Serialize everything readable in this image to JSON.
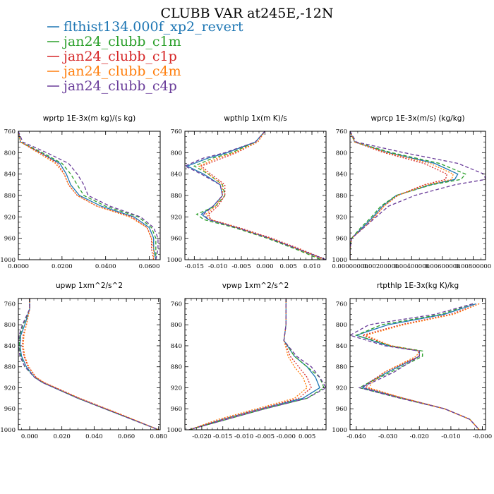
{
  "figure": {
    "title": "CLUBB VAR at245E,-12N"
  },
  "colors": {
    "series": [
      "#1f77b4",
      "#2ca02c",
      "#d62728",
      "#ff7f0e",
      "#6a3d9a"
    ],
    "dashes": [
      "none",
      "5,3",
      "2,2",
      "2,2",
      "5,3"
    ]
  },
  "chart_data": [
    {
      "type": "line",
      "title": "wprtp  1E-3x(m kg)/(s kg)",
      "y_reversed": true,
      "ylim": [
        760,
        1000
      ],
      "xlim": [
        0.0,
        0.065
      ],
      "yticks": [
        "760",
        "800",
        "840",
        "880",
        "920",
        "960",
        "1000"
      ],
      "xticks": [
        "0.0000",
        "0.0200",
        "0.0400",
        "0.0600"
      ],
      "y": [
        760,
        780,
        800,
        820,
        840,
        860,
        880,
        900,
        920,
        940,
        960,
        980,
        1000
      ],
      "series": [
        {
          "name": "flthist134.000f_xp2_revert",
          "values": [
            0.0,
            0.001,
            0.01,
            0.019,
            0.022,
            0.024,
            0.028,
            0.038,
            0.053,
            0.06,
            0.062,
            0.062,
            0.063
          ]
        },
        {
          "name": "jan24_clubb_c1m",
          "values": [
            0.0,
            0.001,
            0.011,
            0.02,
            0.024,
            0.027,
            0.03,
            0.04,
            0.055,
            0.061,
            0.063,
            0.063,
            0.063
          ]
        },
        {
          "name": "jan24_clubb_c1p",
          "values": [
            0.0,
            0.001,
            0.01,
            0.018,
            0.021,
            0.023,
            0.027,
            0.036,
            0.052,
            0.059,
            0.061,
            0.061,
            0.062
          ]
        },
        {
          "name": "jan24_clubb_c4m",
          "values": [
            0.0,
            0.001,
            0.009,
            0.017,
            0.021,
            0.023,
            0.027,
            0.036,
            0.051,
            0.059,
            0.061,
            0.062,
            0.062
          ]
        },
        {
          "name": "jan24_clubb_c4p",
          "values": [
            0.0,
            0.002,
            0.013,
            0.023,
            0.027,
            0.03,
            0.032,
            0.042,
            0.056,
            0.062,
            0.064,
            0.064,
            0.063
          ]
        }
      ]
    },
    {
      "type": "line",
      "title": "wpthlp  1x(m K)/s",
      "y_reversed": true,
      "ylim": [
        760,
        1000
      ],
      "xlim": [
        -0.017,
        0.013
      ],
      "yticks": [
        "760",
        "800",
        "840",
        "880",
        "920",
        "960",
        "1000"
      ],
      "xticks": [
        "-0.015",
        "-0.010",
        "-0.005",
        "0.000",
        "0.005",
        "0.010"
      ],
      "y": [
        760,
        780,
        800,
        810,
        825,
        840,
        860,
        880,
        900,
        915,
        925,
        940,
        960,
        980,
        1000
      ],
      "series": [
        {
          "name": "flthist134.000f_xp2_revert",
          "values": [
            0.0,
            -0.002,
            -0.008,
            -0.012,
            -0.0165,
            -0.013,
            -0.0095,
            -0.009,
            -0.011,
            -0.0135,
            -0.012,
            -0.006,
            0.001,
            0.007,
            0.013
          ]
        },
        {
          "name": "jan24_clubb_c1m",
          "values": [
            0.0,
            -0.002,
            -0.007,
            -0.011,
            -0.015,
            -0.012,
            -0.009,
            -0.0085,
            -0.0105,
            -0.0145,
            -0.013,
            -0.0065,
            0.0005,
            0.0065,
            0.012
          ]
        },
        {
          "name": "jan24_clubb_c1p",
          "values": [
            0.0,
            -0.0015,
            -0.006,
            -0.009,
            -0.0135,
            -0.0115,
            -0.0085,
            -0.0085,
            -0.01,
            -0.012,
            -0.0115,
            -0.0055,
            0.0015,
            0.0075,
            0.013
          ]
        },
        {
          "name": "jan24_clubb_c4m",
          "values": [
            0.0,
            -0.0015,
            -0.0065,
            -0.01,
            -0.014,
            -0.012,
            -0.009,
            -0.009,
            -0.0105,
            -0.0125,
            -0.0115,
            -0.006,
            0.001,
            0.007,
            0.0125
          ]
        },
        {
          "name": "jan24_clubb_c4p",
          "values": [
            0.0,
            -0.002,
            -0.0085,
            -0.013,
            -0.017,
            -0.0135,
            -0.0095,
            -0.009,
            -0.011,
            -0.013,
            -0.012,
            -0.006,
            0.001,
            0.007,
            0.013
          ]
        }
      ]
    },
    {
      "type": "line",
      "title": "wprcp  1E-3x(m/s) (kg/kg)",
      "y_reversed": true,
      "ylim": [
        760,
        1000
      ],
      "xlim": [
        0.0,
        0.0088
      ],
      "yticks": [
        "760",
        "800",
        "840",
        "880",
        "920",
        "960",
        "1000"
      ],
      "xticks": [
        "0.00000000",
        "0.00200000",
        "0.00400000",
        "0.00600000",
        "0.00800000"
      ],
      "y": [
        760,
        780,
        800,
        820,
        840,
        850,
        860,
        880,
        900,
        920,
        940,
        960,
        980,
        1000
      ],
      "series": [
        {
          "name": "flthist134.000f_xp2_revert",
          "values": [
            0.0,
            0.0003,
            0.0025,
            0.0055,
            0.007,
            0.0068,
            0.0052,
            0.003,
            0.0021,
            0.0015,
            0.0008,
            0.0001,
            0.0,
            0.0
          ]
        },
        {
          "name": "jan24_clubb_c1m",
          "values": [
            0.0,
            0.0003,
            0.0027,
            0.0058,
            0.0075,
            0.0072,
            0.0053,
            0.003,
            0.002,
            0.0014,
            0.0007,
            0.0001,
            0.0,
            0.0
          ]
        },
        {
          "name": "jan24_clubb_c1p",
          "values": [
            0.0,
            0.0003,
            0.0022,
            0.0048,
            0.0063,
            0.0062,
            0.0048,
            0.0031,
            0.0022,
            0.0016,
            0.0009,
            0.0001,
            0.0,
            0.0
          ]
        },
        {
          "name": "jan24_clubb_c4m",
          "values": [
            0.0,
            0.0003,
            0.0024,
            0.0052,
            0.0067,
            0.0066,
            0.005,
            0.0031,
            0.0022,
            0.0016,
            0.0009,
            0.0001,
            0.0,
            0.0
          ]
        },
        {
          "name": "jan24_clubb_c4p",
          "values": [
            0.0,
            0.0004,
            0.0035,
            0.007,
            0.0087,
            0.0088,
            0.0068,
            0.0042,
            0.0025,
            0.0017,
            0.0009,
            0.0001,
            0.0,
            0.0
          ]
        }
      ]
    },
    {
      "type": "line",
      "title": "upwp  1xm^2/s^2",
      "y_reversed": true,
      "ylim": [
        750,
        1000
      ],
      "xlim": [
        -0.007,
        0.081
      ],
      "yticks": [
        "760",
        "800",
        "840",
        "880",
        "920",
        "960",
        "1000"
      ],
      "xticks": [
        "0.000",
        "0.020",
        "0.040",
        "0.060",
        "0.080"
      ],
      "y": [
        750,
        770,
        800,
        820,
        840,
        860,
        880,
        900,
        910,
        940,
        970,
        1000
      ],
      "series": [
        {
          "name": "flthist134.000f_xp2_revert",
          "values": [
            0.0,
            0.0,
            -0.003,
            -0.0055,
            -0.006,
            -0.005,
            -0.002,
            0.003,
            0.008,
            0.03,
            0.055,
            0.08
          ]
        },
        {
          "name": "jan24_clubb_c1m",
          "values": [
            0.0,
            0.0,
            -0.004,
            -0.006,
            -0.0065,
            -0.0055,
            -0.003,
            0.003,
            0.008,
            0.03,
            0.055,
            0.08
          ]
        },
        {
          "name": "jan24_clubb_c1p",
          "values": [
            0.0,
            0.0,
            -0.002,
            -0.004,
            -0.0045,
            -0.0035,
            -0.001,
            0.004,
            0.009,
            0.031,
            0.056,
            0.08
          ]
        },
        {
          "name": "jan24_clubb_c4m",
          "values": [
            0.0,
            0.0,
            -0.002,
            -0.0035,
            -0.004,
            -0.003,
            -0.0005,
            0.004,
            0.009,
            0.031,
            0.056,
            0.08
          ]
        },
        {
          "name": "jan24_clubb_c4p",
          "values": [
            0.0,
            0.0,
            -0.0045,
            -0.0065,
            -0.007,
            -0.006,
            -0.003,
            0.003,
            0.008,
            0.03,
            0.055,
            0.08
          ]
        }
      ]
    },
    {
      "type": "line",
      "title": "vpwp  1xm^2/s^2",
      "y_reversed": true,
      "ylim": [
        750,
        1000
      ],
      "xlim": [
        -0.024,
        0.0095
      ],
      "yticks": [
        "760",
        "800",
        "840",
        "880",
        "920",
        "960",
        "1000"
      ],
      "xticks": [
        "-0.020",
        "-0.015",
        "-0.010",
        "-0.005",
        "-0.000",
        "0.005"
      ],
      "y": [
        750,
        780,
        800,
        830,
        860,
        880,
        900,
        920,
        940,
        960,
        980,
        1000
      ],
      "series": [
        {
          "name": "flthist134.000f_xp2_revert",
          "values": [
            0.0,
            0.0,
            0.0,
            -0.0005,
            0.002,
            0.005,
            0.007,
            0.008,
            0.004,
            -0.006,
            -0.015,
            -0.023
          ]
        },
        {
          "name": "jan24_clubb_c1m",
          "values": [
            0.0,
            0.0,
            0.0,
            -0.0005,
            0.002,
            0.005,
            0.008,
            0.009,
            0.005,
            -0.005,
            -0.014,
            -0.023
          ]
        },
        {
          "name": "jan24_clubb_c1p",
          "values": [
            0.0,
            0.0,
            0.0,
            -0.0005,
            0.001,
            0.003,
            0.005,
            0.006,
            0.003,
            -0.006,
            -0.015,
            -0.023
          ]
        },
        {
          "name": "jan24_clubb_c4m",
          "values": [
            0.0,
            0.0,
            0.0,
            -0.0005,
            0.0005,
            0.002,
            0.004,
            0.005,
            0.002,
            -0.007,
            -0.016,
            -0.023
          ]
        },
        {
          "name": "jan24_clubb_c4p",
          "values": [
            0.0,
            0.0,
            0.0,
            -0.0005,
            0.0025,
            0.006,
            0.008,
            0.0095,
            0.005,
            -0.005,
            -0.014,
            -0.023
          ]
        }
      ]
    },
    {
      "type": "line",
      "title": "rtpthlp  1E-3x(kg K)/kg",
      "y_reversed": true,
      "ylim": [
        750,
        1000
      ],
      "xlim": [
        -0.042,
        0.001
      ],
      "yticks": [
        "760",
        "800",
        "840",
        "880",
        "920",
        "960",
        "1000"
      ],
      "xticks": [
        "-0.040",
        "-0.030",
        "-0.020",
        "-0.010",
        "-0.000"
      ],
      "y": [
        760,
        780,
        800,
        820,
        840,
        850,
        860,
        890,
        910,
        920,
        940,
        960,
        980,
        1000
      ],
      "series": [
        {
          "name": "flthist134.000f_xp2_revert",
          "values": [
            -0.002,
            -0.012,
            -0.03,
            -0.04,
            -0.03,
            -0.02,
            -0.02,
            -0.03,
            -0.036,
            -0.038,
            -0.025,
            -0.012,
            -0.004,
            -0.001
          ]
        },
        {
          "name": "jan24_clubb_c1m",
          "values": [
            -0.003,
            -0.013,
            -0.032,
            -0.04,
            -0.029,
            -0.019,
            -0.019,
            -0.029,
            -0.036,
            -0.039,
            -0.026,
            -0.012,
            -0.004,
            -0.001
          ]
        },
        {
          "name": "jan24_clubb_c1p",
          "values": [
            -0.001,
            -0.01,
            -0.026,
            -0.038,
            -0.029,
            -0.02,
            -0.02,
            -0.031,
            -0.036,
            -0.037,
            -0.025,
            -0.012,
            -0.004,
            -0.001
          ]
        },
        {
          "name": "jan24_clubb_c4m",
          "values": [
            -0.001,
            -0.009,
            -0.025,
            -0.037,
            -0.029,
            -0.02,
            -0.021,
            -0.031,
            -0.035,
            -0.036,
            -0.025,
            -0.012,
            -0.004,
            -0.001
          ]
        },
        {
          "name": "jan24_clubb_c4p",
          "values": [
            -0.003,
            -0.015,
            -0.036,
            -0.042,
            -0.031,
            -0.02,
            -0.02,
            -0.028,
            -0.035,
            -0.039,
            -0.026,
            -0.012,
            -0.004,
            -0.001
          ]
        }
      ]
    }
  ]
}
